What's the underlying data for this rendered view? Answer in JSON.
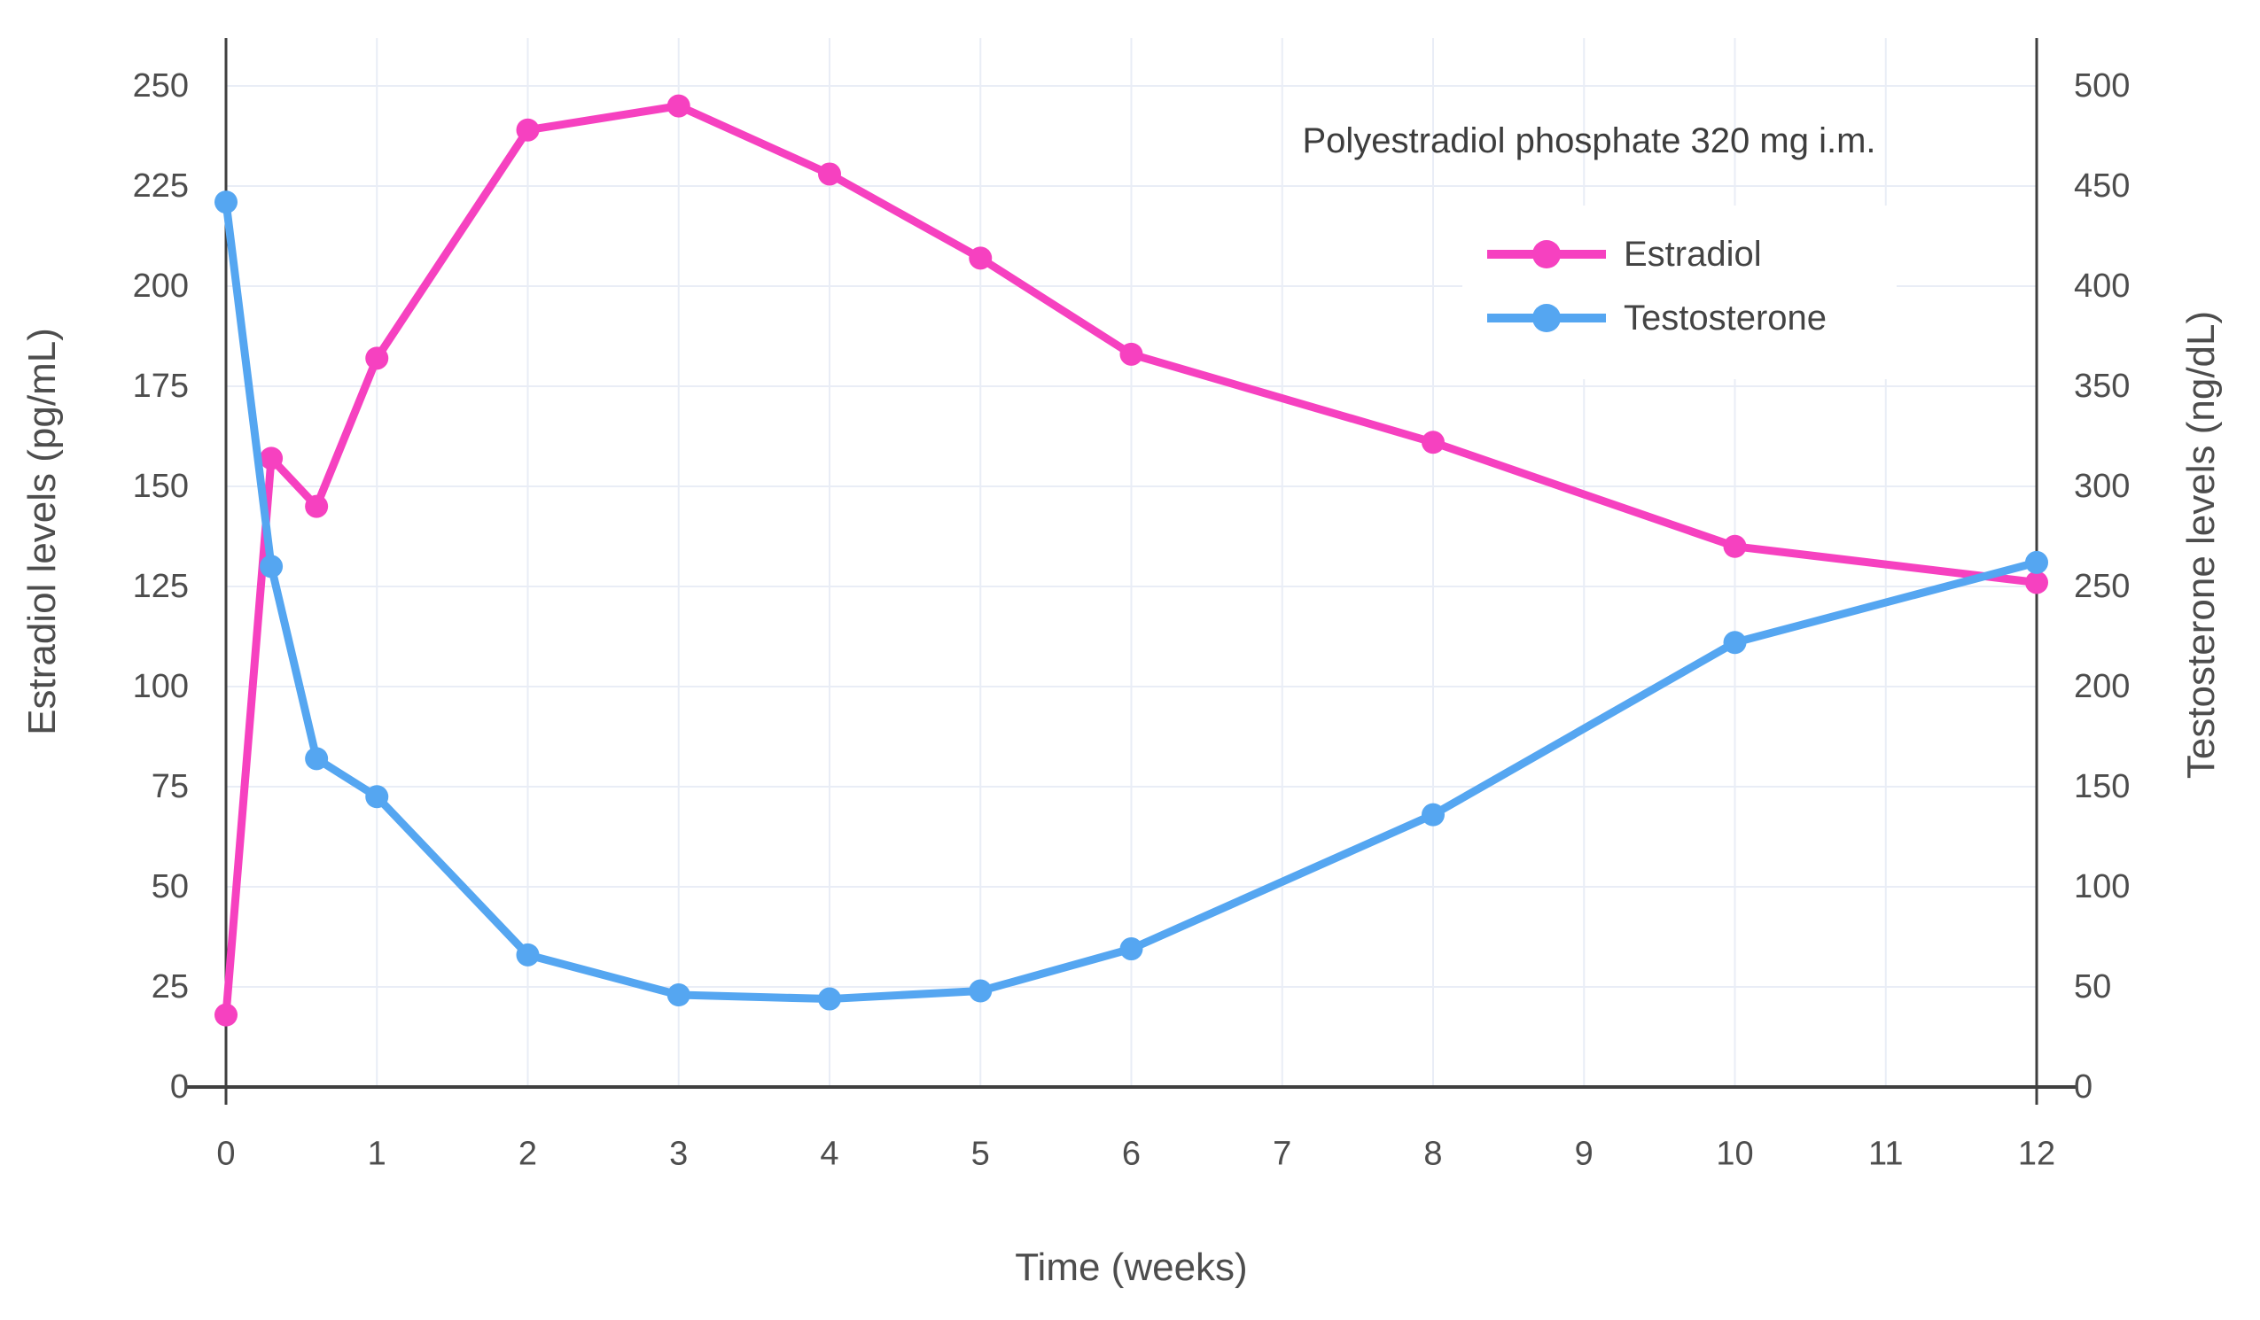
{
  "chart_data": {
    "type": "line",
    "title": "Polyestradiol phosphate 320 mg i.m.",
    "xlabel": "Time (weeks)",
    "ylabel_left": "Estradiol levels (pg/mL)",
    "ylabel_right": "Testosterone levels (ng/dL)",
    "x": [
      0,
      0.3,
      0.6,
      1,
      2,
      3,
      4,
      5,
      6,
      8,
      10,
      12
    ],
    "series": [
      {
        "name": "Estradiol",
        "axis": "left",
        "unit": "pg/mL",
        "color": "#f641c0",
        "values": [
          18,
          157,
          145,
          182,
          239,
          245,
          228,
          207,
          183,
          161,
          135,
          126
        ]
      },
      {
        "name": "Testosterone",
        "axis": "right",
        "unit": "ng/dL",
        "color": "#55a6f1",
        "values": [
          442,
          260,
          164,
          145,
          66,
          46,
          44,
          48,
          69,
          136,
          222,
          262
        ]
      }
    ],
    "x_axis": {
      "min": 0,
      "max": 12,
      "tick_labels": [
        "0",
        "1",
        "2",
        "3",
        "4",
        "5",
        "6",
        "7",
        "8",
        "9",
        "10",
        "11",
        "12"
      ]
    },
    "y_left": {
      "min": 0,
      "max": 250,
      "step": 25,
      "tick_labels": [
        "0",
        "25",
        "50",
        "75",
        "100",
        "125",
        "150",
        "175",
        "200",
        "225",
        "250"
      ]
    },
    "y_right": {
      "min": 0,
      "max": 500,
      "step": 50,
      "tick_labels": [
        "0",
        "50",
        "100",
        "150",
        "200",
        "250",
        "300",
        "350",
        "400",
        "450",
        "500"
      ]
    },
    "grid": true,
    "legend_position": "inside-upper-right",
    "colors": {
      "estradiol": "#f641c0",
      "testosterone": "#55a6f1",
      "gridline": "#e9edf6",
      "axis": "#3f3f3f",
      "tick_text": "#4d4d4d",
      "title_text": "#3d3d3d",
      "background": "#ffffff",
      "legend_background": "#ffffff"
    }
  }
}
